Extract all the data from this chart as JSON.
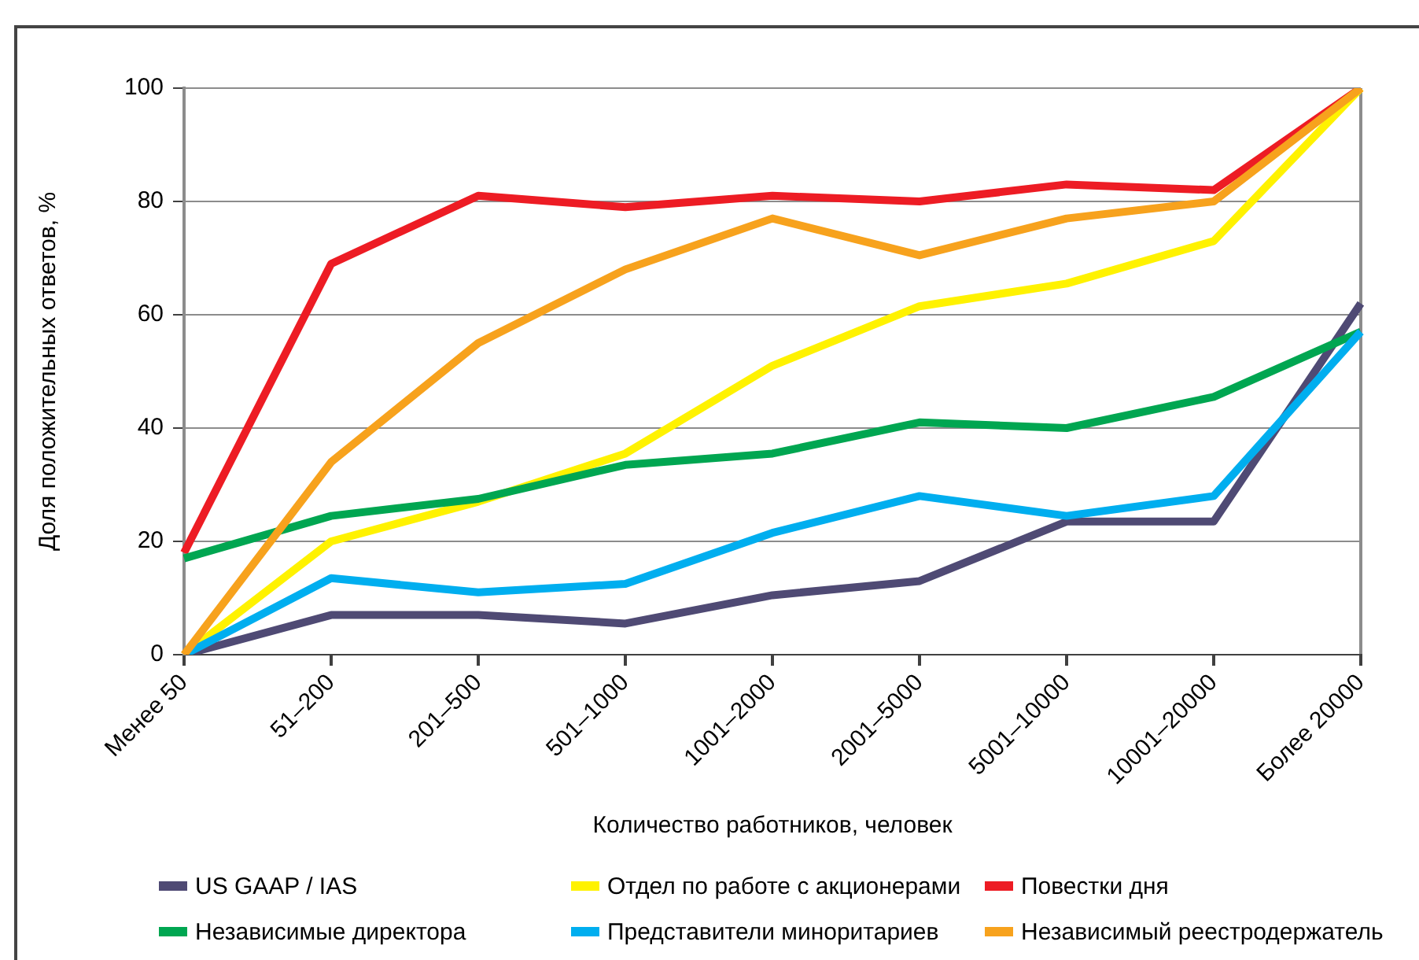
{
  "chart_data": {
    "type": "line",
    "xlabel": "Количество работников, человек",
    "ylabel": "Доля положительных ответов, %",
    "categories": [
      "Менее 50",
      "51–200",
      "201–500",
      "501–1000",
      "1001–2000",
      "2001–5000",
      "5001–10000",
      "10001–20000",
      "Более 20000"
    ],
    "series": [
      {
        "name": "US GAAP / IAS",
        "color": "#4f4a74",
        "values": [
          0,
          7,
          7,
          5.5,
          10.5,
          13,
          23.5,
          23.5,
          62
        ]
      },
      {
        "name": "Отдел по работе с акционерами",
        "color": "#fff200",
        "values": [
          0,
          20,
          27,
          35.5,
          51,
          61.5,
          65.5,
          73,
          100
        ]
      },
      {
        "name": "Повестки дня",
        "color": "#ed1c24",
        "values": [
          18,
          69,
          81,
          79,
          81,
          80,
          83,
          82,
          100
        ]
      },
      {
        "name": "Независимые директора",
        "color": "#00a651",
        "values": [
          17,
          24.5,
          27.5,
          33.5,
          35.5,
          41,
          40,
          45.5,
          57
        ]
      },
      {
        "name": "Представители миноритариев",
        "color": "#00aeef",
        "values": [
          0,
          13.5,
          11,
          12.5,
          21.5,
          28,
          24.5,
          28,
          57
        ]
      },
      {
        "name": "Независимый реестродержатель",
        "color": "#f7a21d",
        "values": [
          0,
          34,
          55,
          68,
          77,
          70.5,
          77,
          80,
          100
        ]
      }
    ],
    "ylim": [
      0,
      100
    ],
    "yticks": [
      0,
      20,
      40,
      60,
      80,
      100
    ],
    "grid": "y",
    "legend": "bottom"
  }
}
